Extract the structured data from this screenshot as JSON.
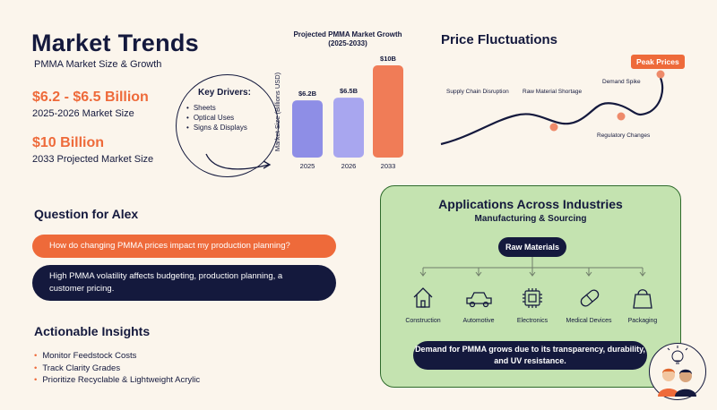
{
  "header": {
    "title": "Market Trends",
    "subtitle": "PMMA Market Size & Growth"
  },
  "stats": [
    {
      "value": "$6.2 - $6.5 Billion",
      "label": "2025-2026 Market Size"
    },
    {
      "value": "$10 Billion",
      "label": "2033 Projected Market Size"
    }
  ],
  "drivers": {
    "title": "Key Drivers:",
    "items": [
      "Sheets",
      "Optical Uses",
      "Signs & Displays"
    ]
  },
  "chart_data": {
    "type": "bar",
    "title": "Projected PMMA Market Growth (2025-2033)",
    "ylabel": "Market Size (Billions USD)",
    "categories": [
      "2025",
      "2026",
      "2033"
    ],
    "values": [
      6.2,
      6.5,
      10
    ],
    "data_labels": [
      "$6.2B",
      "$6.5B",
      "$10B"
    ],
    "colors": [
      "#8e8ee6",
      "#a8a6ef",
      "#f07c57"
    ]
  },
  "price": {
    "title": "Price Fluctuations",
    "peak_label": "Peak Prices",
    "events": [
      "Supply Chain Disruption",
      "Raw Material Shortage",
      "Demand Spike",
      "Regulatory Changes"
    ],
    "line_color": "#14193d",
    "marker_color": "#ee8a6a"
  },
  "question": {
    "title": "Question for Alex",
    "prompt": "How do changing PMMA prices impact my production planning?",
    "answer": "High PMMA volatility affects budgeting, production planning, a customer pricing."
  },
  "insights": {
    "title": "Actionable Insights",
    "items": [
      "Monitor Feedstock Costs",
      "Track Clarity Grades",
      "Prioritize Recyclable & Lightweight Acrylic"
    ]
  },
  "applications": {
    "title": "Applications Across Industries",
    "subtitle": "Manufacturing & Sourcing",
    "root": "Raw Materials",
    "industries": [
      {
        "label": "Construction",
        "icon": "house-icon"
      },
      {
        "label": "Automotive",
        "icon": "car-icon"
      },
      {
        "label": "Electronics",
        "icon": "chip-icon"
      },
      {
        "label": "Medical Devices",
        "icon": "pill-icon"
      },
      {
        "label": "Packaging",
        "icon": "bag-icon"
      }
    ],
    "note": "Demand for PMMA grows due to its transparency, durability, and UV resistance.",
    "panel_color": "#c4e3b0"
  },
  "colors": {
    "navy": "#14193d",
    "orange": "#ee6a3a",
    "background": "#fbf5ec"
  }
}
